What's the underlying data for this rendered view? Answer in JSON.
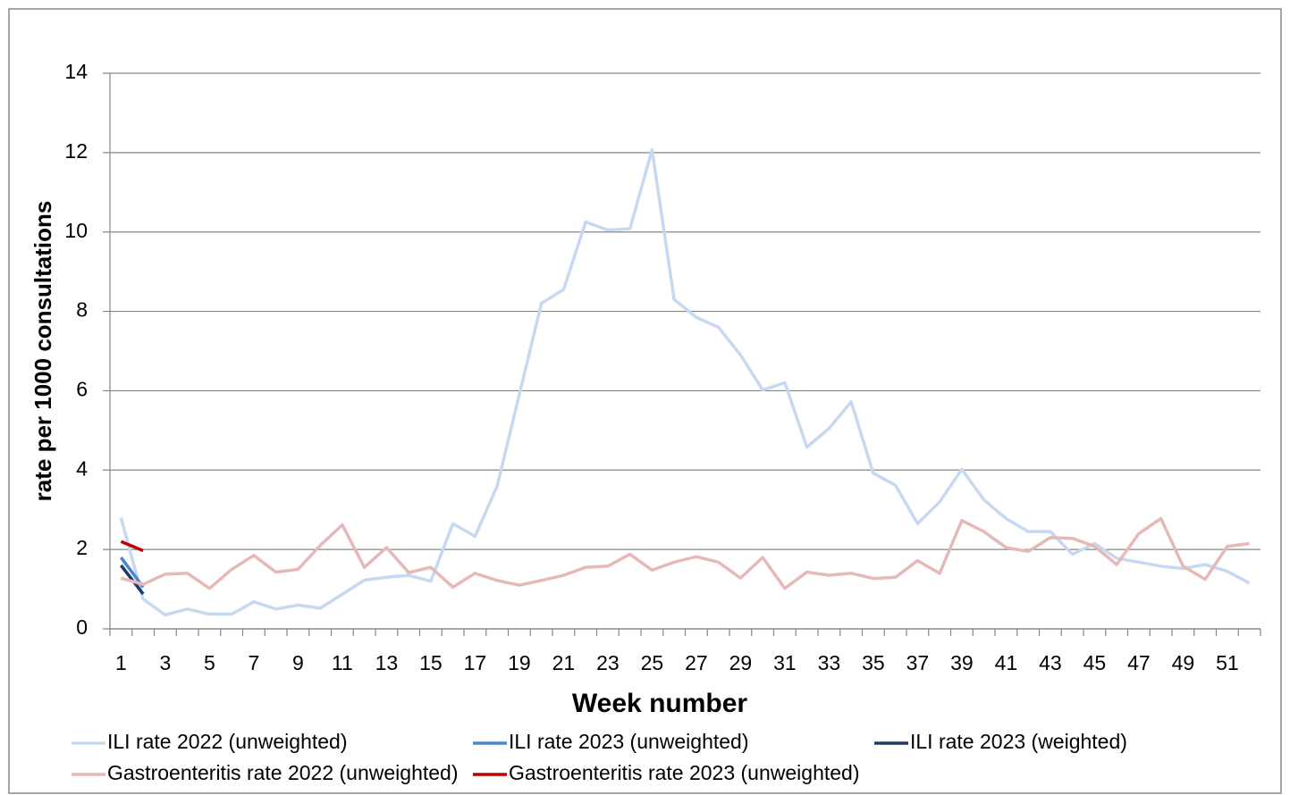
{
  "chart_data": {
    "type": "line",
    "y_label": "rate per 1000 consultations",
    "x_label": "Week number",
    "categories": [
      "1",
      null,
      "3",
      null,
      "5",
      null,
      "7",
      null,
      "9",
      null,
      "11",
      null,
      "13",
      null,
      "15",
      null,
      "17",
      null,
      "19",
      null,
      "21",
      null,
      "23",
      null,
      "25",
      null,
      "27",
      null,
      "29",
      null,
      "31",
      null,
      "33",
      null,
      "35",
      null,
      "37",
      null,
      "39",
      null,
      "41",
      null,
      "43",
      null,
      "45",
      null,
      "47",
      null,
      "49",
      null,
      "51",
      null
    ],
    "series": [
      {
        "name": "ILI rate 2022 (unweighted)",
        "color": "#c6d9f0",
        "values": [
          2.8,
          0.75,
          0.35,
          0.5,
          0.37,
          0.37,
          0.68,
          0.5,
          0.6,
          0.52,
          0.87,
          1.23,
          1.3,
          1.35,
          1.2,
          2.65,
          2.33,
          3.6,
          5.9,
          8.2,
          8.55,
          10.25,
          10.05,
          10.08,
          12.07,
          8.3,
          7.85,
          7.6,
          6.9,
          6.02,
          6.2,
          4.58,
          5.05,
          5.72,
          3.92,
          3.62,
          2.65,
          3.2,
          4.02,
          3.25,
          2.78,
          2.45,
          2.45,
          1.88,
          2.15,
          1.78,
          1.68,
          1.58,
          1.52,
          1.62,
          1.45,
          1.15
        ]
      },
      {
        "name": "ILI rate 2023 (unweighted)",
        "color": "#4a86d4",
        "values": [
          1.8,
          1.05,
          null,
          null,
          null,
          null,
          null,
          null,
          null,
          null,
          null,
          null,
          null,
          null,
          null,
          null,
          null,
          null,
          null,
          null,
          null,
          null,
          null,
          null,
          null,
          null,
          null,
          null,
          null,
          null,
          null,
          null,
          null,
          null,
          null,
          null,
          null,
          null,
          null,
          null,
          null,
          null,
          null,
          null,
          null,
          null,
          null,
          null,
          null,
          null,
          null,
          null
        ]
      },
      {
        "name": "ILI rate 2023 (weighted)",
        "color": "#1f3864",
        "values": [
          1.6,
          0.88,
          null,
          null,
          null,
          null,
          null,
          null,
          null,
          null,
          null,
          null,
          null,
          null,
          null,
          null,
          null,
          null,
          null,
          null,
          null,
          null,
          null,
          null,
          null,
          null,
          null,
          null,
          null,
          null,
          null,
          null,
          null,
          null,
          null,
          null,
          null,
          null,
          null,
          null,
          null,
          null,
          null,
          null,
          null,
          null,
          null,
          null,
          null,
          null,
          null,
          null
        ]
      },
      {
        "name": "Gastroenteritis rate 2022 (unweighted)",
        "color": "#e6b9b8",
        "values": [
          1.28,
          1.12,
          1.38,
          1.4,
          1.02,
          1.5,
          1.85,
          1.43,
          1.5,
          2.1,
          2.62,
          1.55,
          2.05,
          1.42,
          1.55,
          1.05,
          1.4,
          1.22,
          1.1,
          1.22,
          1.35,
          1.55,
          1.58,
          1.88,
          1.48,
          1.68,
          1.82,
          1.68,
          1.28,
          1.8,
          1.02,
          1.43,
          1.35,
          1.4,
          1.27,
          1.3,
          1.72,
          1.4,
          2.73,
          2.45,
          2.05,
          1.95,
          2.3,
          2.28,
          2.08,
          1.62,
          2.4,
          2.78,
          1.58,
          1.25,
          2.08,
          2.15
        ]
      },
      {
        "name": "Gastroenteritis rate 2023 (unweighted)",
        "color": "#c00000",
        "values": [
          2.2,
          1.97,
          null,
          null,
          null,
          null,
          null,
          null,
          null,
          null,
          null,
          null,
          null,
          null,
          null,
          null,
          null,
          null,
          null,
          null,
          null,
          null,
          null,
          null,
          null,
          null,
          null,
          null,
          null,
          null,
          null,
          null,
          null,
          null,
          null,
          null,
          null,
          null,
          null,
          null,
          null,
          null,
          null,
          null,
          null,
          null,
          null,
          null,
          null,
          null,
          null,
          null
        ]
      }
    ],
    "ylim": [
      0,
      14
    ],
    "yticks": [
      0,
      2,
      4,
      6,
      8,
      10,
      12,
      14
    ],
    "grid": true,
    "legend": "bottom"
  }
}
